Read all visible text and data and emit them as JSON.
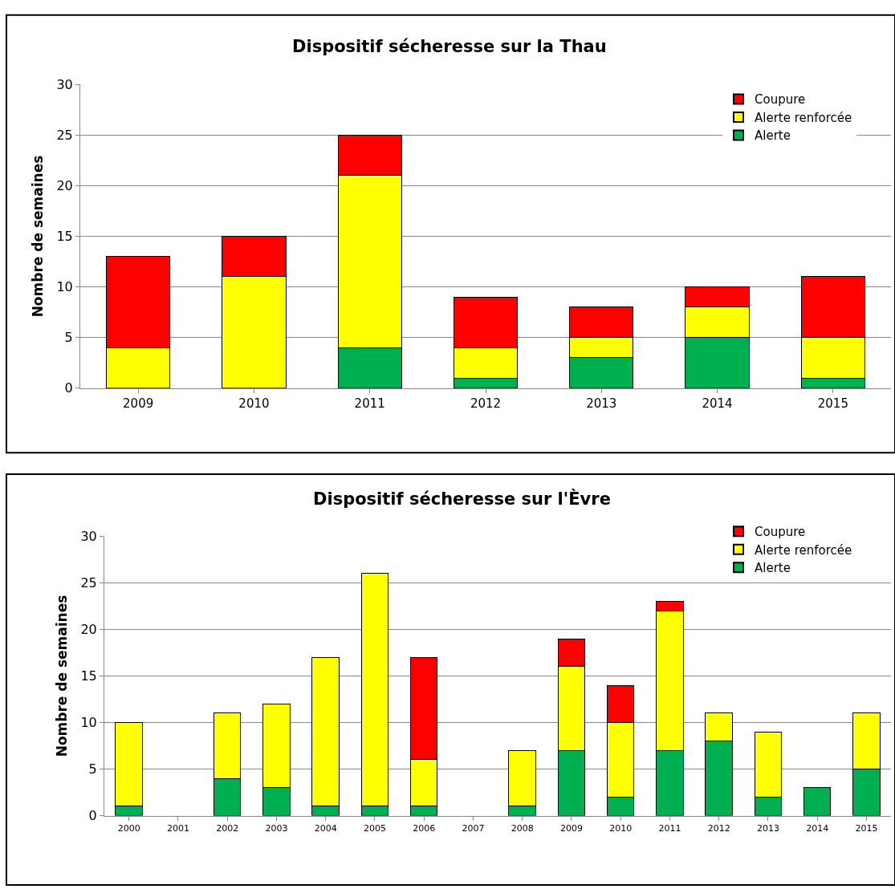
{
  "chart_data": [
    {
      "type": "bar",
      "title": "Dispositif sécheresse sur la Thau",
      "ylabel": "Nombre de semaines",
      "stacked": true,
      "grid": "y",
      "legend": "top right",
      "categories": [
        "2009",
        "2010",
        "2011",
        "2012",
        "2013",
        "2014",
        "2015"
      ],
      "ylim": [
        0,
        30
      ],
      "yticks": [
        0,
        5,
        10,
        15,
        20,
        25,
        30
      ],
      "series": [
        {
          "name": "Alerte",
          "color": "#00b050",
          "values": [
            null,
            null,
            4,
            1,
            3,
            5,
            1
          ]
        },
        {
          "name": "Alerte renforcée",
          "color": "#ffff00",
          "values": [
            4,
            11,
            17,
            3,
            2,
            3,
            4
          ]
        },
        {
          "name": "Coupure",
          "color": "#ff0000",
          "values": [
            9,
            4,
            4,
            5,
            3,
            2,
            6
          ]
        }
      ]
    },
    {
      "type": "bar",
      "title": "Dispositif sécheresse sur l'Èvre",
      "ylabel": "Nombre de semaines",
      "stacked": true,
      "grid": "y",
      "legend": "top right",
      "categories": [
        "2000",
        "2001",
        "2002",
        "2003",
        "2004",
        "2005",
        "2006",
        "2007",
        "2008",
        "2009",
        "2010",
        "2011",
        "2012",
        "2013",
        "2014",
        "2015"
      ],
      "ylim": [
        0,
        30
      ],
      "yticks": [
        0,
        5,
        10,
        15,
        20,
        25,
        30
      ],
      "series": [
        {
          "name": "Alerte",
          "color": "#00b050",
          "values": [
            1,
            null,
            4,
            3,
            1,
            1,
            1,
            null,
            1,
            7,
            2,
            7,
            8,
            2,
            3,
            5
          ]
        },
        {
          "name": "Alerte renforcée",
          "color": "#ffff00",
          "values": [
            9,
            null,
            7,
            9,
            16,
            25,
            5,
            null,
            6,
            9,
            8,
            15,
            3,
            7,
            null,
            6
          ]
        },
        {
          "name": "Coupure",
          "color": "#ff0000",
          "values": [
            null,
            null,
            null,
            null,
            null,
            null,
            11,
            null,
            null,
            3,
            4,
            1,
            null,
            null,
            null,
            null
          ]
        }
      ]
    }
  ]
}
